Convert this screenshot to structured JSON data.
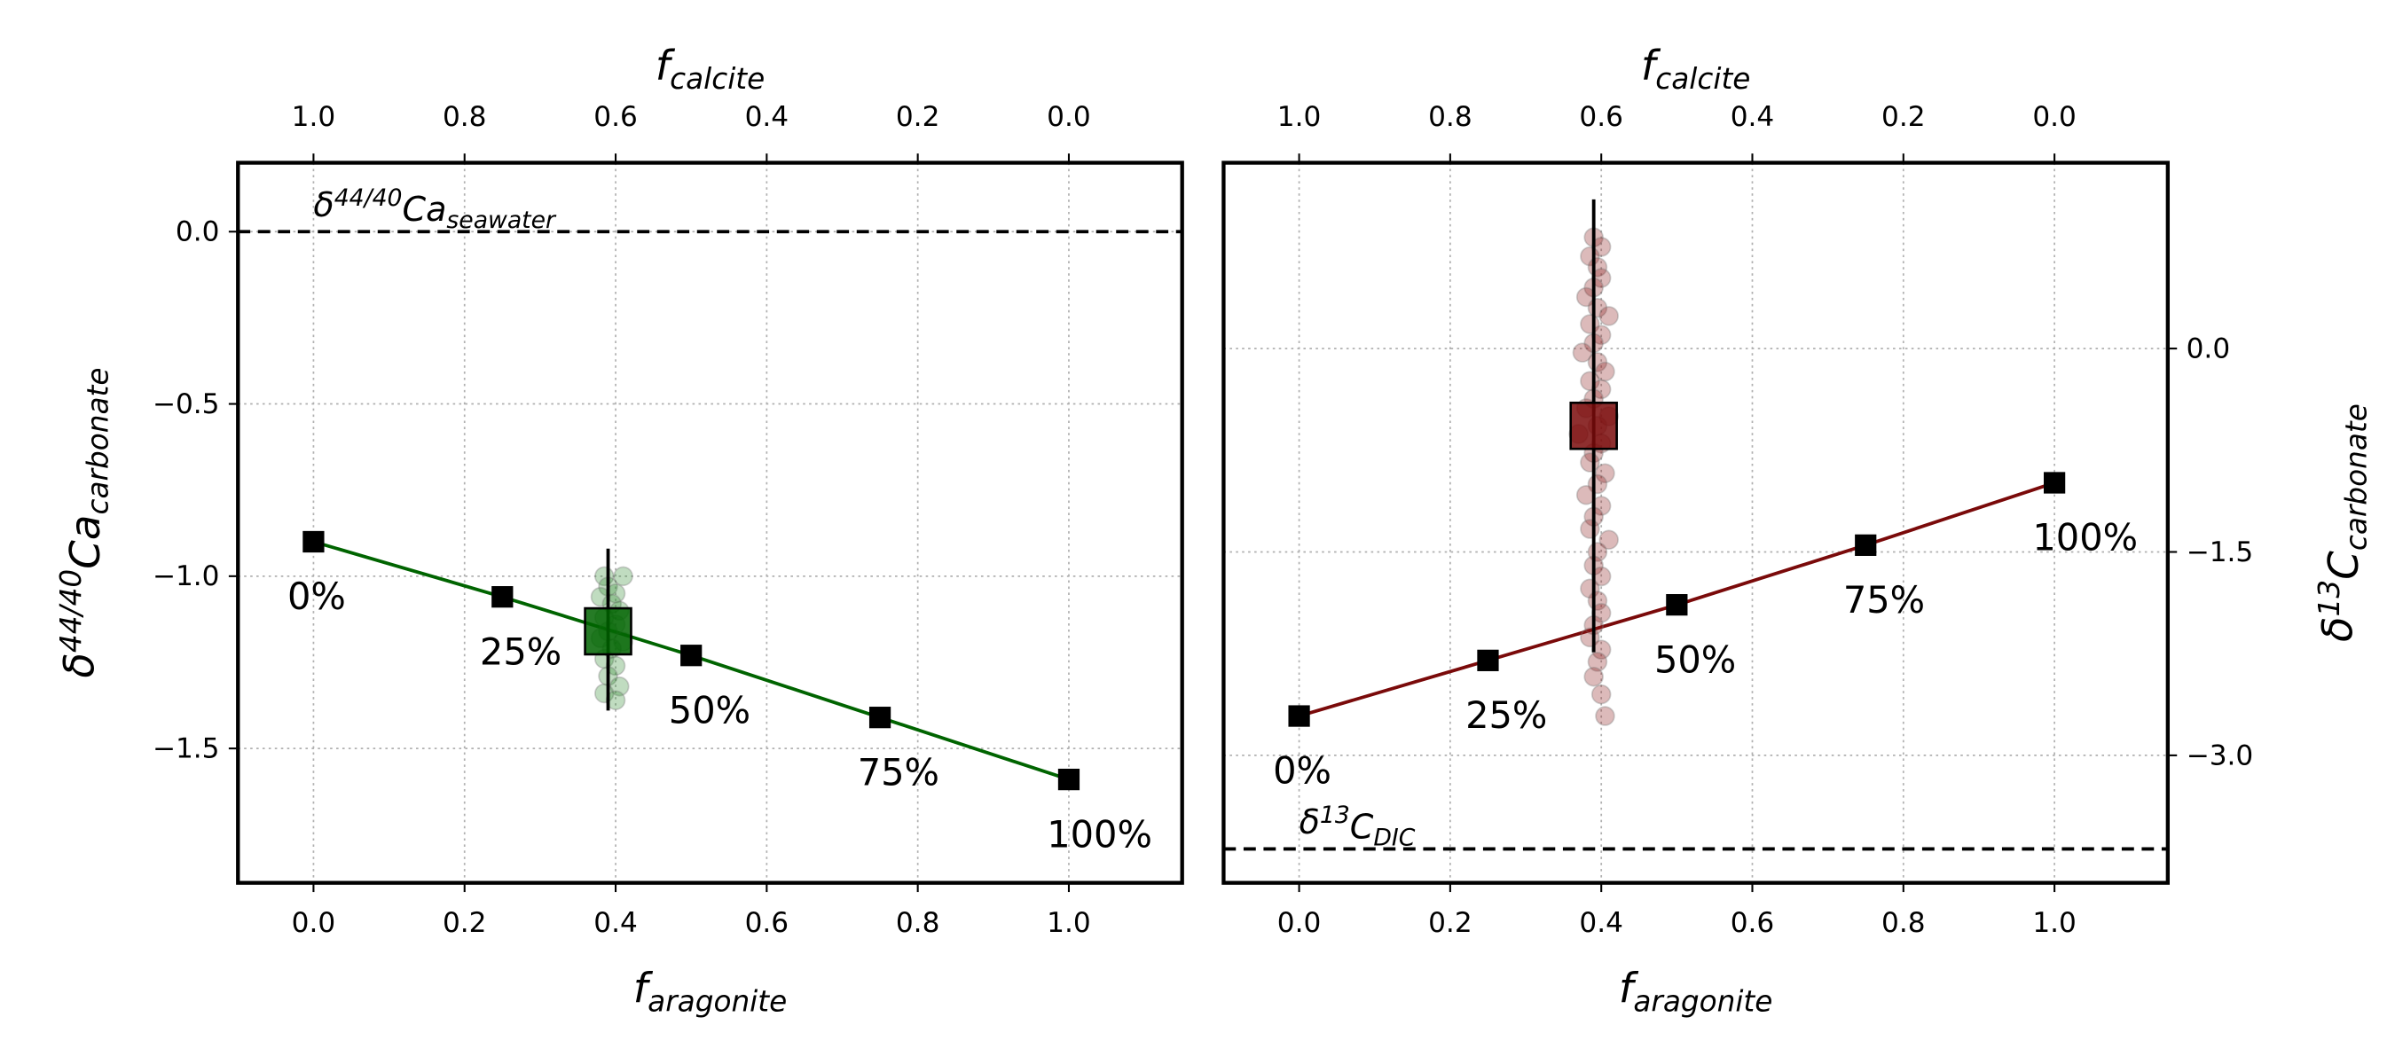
{
  "chart_data": [
    {
      "type": "line",
      "color": "#006400",
      "xlabel": [
        "f",
        "aragonite"
      ],
      "x2label": [
        "f",
        "calcite"
      ],
      "ylabel": [
        "δ",
        "44/40",
        "Ca",
        "carbonate"
      ],
      "yaxis_side": "left",
      "x": [
        0,
        0.25,
        0.5,
        0.75,
        1.0
      ],
      "values": [
        -0.9,
        -1.06,
        -1.23,
        -1.41,
        -1.59
      ],
      "point_labels": [
        "0%",
        "25%",
        "50%",
        "75%",
        "100%"
      ],
      "xlim": [
        -0.1,
        1.15
      ],
      "x2lim": [
        1.1,
        -0.15
      ],
      "ylim": [
        -1.89,
        0.2
      ],
      "xticks": [
        {
          "value": 0,
          "label": "0.0"
        },
        {
          "value": 0.2,
          "label": "0.2"
        },
        {
          "value": 0.4,
          "label": "0.4"
        },
        {
          "value": 0.6,
          "label": "0.6"
        },
        {
          "value": 0.8,
          "label": "0.8"
        },
        {
          "value": 1.0,
          "label": "1.0"
        }
      ],
      "x2ticks": [
        {
          "value": 1.0,
          "label": "1.0"
        },
        {
          "value": 0.8,
          "label": "0.8"
        },
        {
          "value": 0.6,
          "label": "0.6"
        },
        {
          "value": 0.4,
          "label": "0.4"
        },
        {
          "value": 0.2,
          "label": "0.2"
        },
        {
          "value": 0,
          "label": "0.0"
        }
      ],
      "yticks": [
        {
          "value": 0,
          "label": "0.0"
        },
        {
          "value": -0.5,
          "label": "−0.5"
        },
        {
          "value": -1.0,
          "label": "−1.0"
        },
        {
          "value": -1.5,
          "label": "−1.5"
        }
      ],
      "grid": true,
      "ref_line": {
        "value": 0,
        "label": [
          "δ",
          "44/40",
          "Ca",
          "seawater"
        ]
      },
      "scatter": {
        "color": "#2e8b2e",
        "x": [
          0.385,
          0.41,
          0.39,
          0.4,
          0.38,
          0.395,
          0.405,
          0.385,
          0.4,
          0.39,
          0.38,
          0.41,
          0.395,
          0.385,
          0.4,
          0.39,
          0.405,
          0.385,
          0.4
        ],
        "values": [
          -1.0,
          -1.0,
          -1.03,
          -1.05,
          -1.06,
          -1.08,
          -1.1,
          -1.12,
          -1.14,
          -1.16,
          -1.18,
          -1.19,
          -1.21,
          -1.24,
          -1.26,
          -1.29,
          -1.32,
          -1.34,
          -1.36
        ]
      },
      "mean": {
        "x": 0.39,
        "value": -1.16,
        "ymax": -0.92,
        "ymin": -1.39,
        "color": "#006400"
      }
    },
    {
      "type": "line",
      "color": "#7a0a0a",
      "xlabel": [
        "f",
        "aragonite"
      ],
      "x2label": [
        "f",
        "calcite"
      ],
      "ylabel": [
        "δ",
        "13",
        "C",
        "carbonate"
      ],
      "yaxis_side": "right",
      "x": [
        0,
        0.25,
        0.5,
        0.75,
        1.0
      ],
      "values": [
        -2.71,
        -2.3,
        -1.89,
        -1.45,
        -0.99
      ],
      "point_labels": [
        "0%",
        "25%",
        "50%",
        "75%",
        "100%"
      ],
      "xlim": [
        -0.1,
        1.15
      ],
      "x2lim": [
        1.1,
        -0.15
      ],
      "ylim": [
        -3.94,
        1.37
      ],
      "xticks": [
        {
          "value": 0,
          "label": "0.0"
        },
        {
          "value": 0.2,
          "label": "0.2"
        },
        {
          "value": 0.4,
          "label": "0.4"
        },
        {
          "value": 0.6,
          "label": "0.6"
        },
        {
          "value": 0.8,
          "label": "0.8"
        },
        {
          "value": 1.0,
          "label": "1.0"
        }
      ],
      "x2ticks": [
        {
          "value": 1.0,
          "label": "1.0"
        },
        {
          "value": 0.8,
          "label": "0.8"
        },
        {
          "value": 0.6,
          "label": "0.6"
        },
        {
          "value": 0.4,
          "label": "0.4"
        },
        {
          "value": 0.2,
          "label": "0.2"
        },
        {
          "value": 0,
          "label": "0.0"
        }
      ],
      "yticks": [
        {
          "value": 0,
          "label": "0.0"
        },
        {
          "value": -1.5,
          "label": "−1.5"
        },
        {
          "value": -3.0,
          "label": "−3.0"
        }
      ],
      "grid": true,
      "ref_line": {
        "value": -3.69,
        "label": [
          "δ",
          "13",
          "C",
          "DIC"
        ]
      },
      "scatter": {
        "color": "#8b1a1a",
        "x": [
          0.39,
          0.4,
          0.385,
          0.395,
          0.4,
          0.39,
          0.38,
          0.395,
          0.41,
          0.385,
          0.4,
          0.39,
          0.375,
          0.395,
          0.405,
          0.385,
          0.4,
          0.39,
          0.38,
          0.41,
          0.395,
          0.37,
          0.4,
          0.39,
          0.385,
          0.405,
          0.395,
          0.38,
          0.4,
          0.39,
          0.385,
          0.41,
          0.395,
          0.39,
          0.4,
          0.385,
          0.395,
          0.4,
          0.39,
          0.385,
          0.4,
          0.395,
          0.39,
          0.4,
          0.405
        ],
        "values": [
          0.82,
          0.75,
          0.68,
          0.6,
          0.52,
          0.45,
          0.38,
          0.3,
          0.24,
          0.18,
          0.1,
          0.04,
          -0.03,
          -0.1,
          -0.17,
          -0.24,
          -0.3,
          -0.37,
          -0.44,
          -0.5,
          -0.57,
          -0.63,
          -0.7,
          -0.77,
          -0.84,
          -0.92,
          -1.0,
          -1.08,
          -1.16,
          -1.24,
          -1.33,
          -1.41,
          -1.5,
          -1.6,
          -1.68,
          -1.77,
          -1.86,
          -1.95,
          -2.04,
          -2.13,
          -2.22,
          -2.31,
          -2.42,
          -2.55,
          -2.71
        ]
      },
      "mean": {
        "x": 0.39,
        "value": -0.57,
        "ymax": 1.1,
        "ymin": -2.24,
        "color": "#7a0a0a"
      }
    }
  ]
}
